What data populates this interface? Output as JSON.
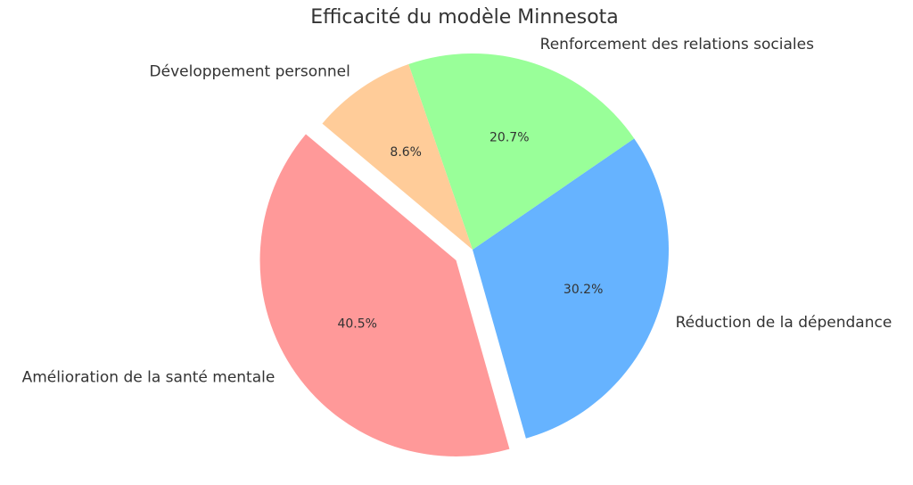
{
  "chart_data": {
    "type": "pie",
    "title": "Efficacité du modèle Minnesota",
    "categories": [
      "Amélioration de la santé mentale",
      "Réduction de la dépendance",
      "Renforcement des relations sociales",
      "Développement personnel"
    ],
    "values": [
      40.5,
      30.2,
      20.7,
      8.6
    ],
    "value_labels": [
      "40.5%",
      "30.2%",
      "20.7%",
      "8.6%"
    ],
    "colors": [
      "#ff9999",
      "#66b3ff",
      "#99ff99",
      "#ffcc99"
    ],
    "explode": [
      0.1,
      0,
      0,
      0
    ]
  }
}
